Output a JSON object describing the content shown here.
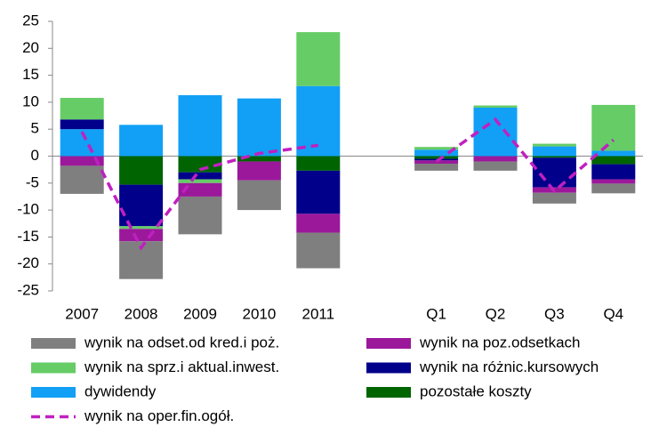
{
  "chart_data": {
    "type": "stacked-bar-line",
    "categories": [
      "2007",
      "2008",
      "2009",
      "2010",
      "2011",
      null,
      "Q1",
      "Q2",
      "Q3",
      "Q4"
    ],
    "series": [
      {
        "name": "wynik na odset.od kred.i poż.",
        "color": "#7f7f7f",
        "kind": "bar",
        "values": [
          -5.2,
          -7,
          -7,
          -5.5,
          -6.6,
          null,
          -1.3,
          -1.7,
          -2,
          -1.8
        ]
      },
      {
        "name": "wynik na poz.odsetkach",
        "color": "#9b189b",
        "kind": "bar",
        "values": [
          -1.8,
          -2.3,
          -2.5,
          -3.5,
          -3.5,
          null,
          -0.6,
          -1,
          -1,
          -0.8
        ]
      },
      {
        "name": "wynik na sprz.i aktual.inwest.",
        "color": "#66cc66",
        "kind": "bar",
        "values": [
          4,
          -0.5,
          -0.7,
          0,
          10,
          null,
          0.5,
          0.4,
          0.5,
          8.5
        ]
      },
      {
        "name": "wynik na różnic.kursowych",
        "color": "#00008b",
        "kind": "bar",
        "values": [
          1.8,
          -7.7,
          -1.3,
          0,
          -8,
          null,
          -0.3,
          0,
          -5.5,
          -2.8
        ]
      },
      {
        "name": "dywidendy",
        "color": "#11a0f5",
        "kind": "bar",
        "values": [
          5,
          5.8,
          11.3,
          10.7,
          13,
          null,
          1.2,
          9,
          1.8,
          1
        ]
      },
      {
        "name": "pozostałe koszty",
        "color": "#006400",
        "kind": "bar",
        "values": [
          0,
          -5.3,
          -3,
          -1,
          -2.7,
          null,
          -0.5,
          0,
          -0.3,
          -1.5
        ]
      },
      {
        "name": "wynik na oper.fin.ogół.",
        "color": "#c020c0",
        "kind": "line",
        "values": [
          4.5,
          -17,
          -2.5,
          0.5,
          2,
          null,
          -1,
          6.8,
          -6.5,
          3
        ]
      }
    ],
    "ylim": [
      -25,
      25
    ],
    "yticks": [
      -25,
      -20,
      -15,
      -10,
      -5,
      0,
      5,
      10,
      15,
      20,
      25
    ]
  }
}
